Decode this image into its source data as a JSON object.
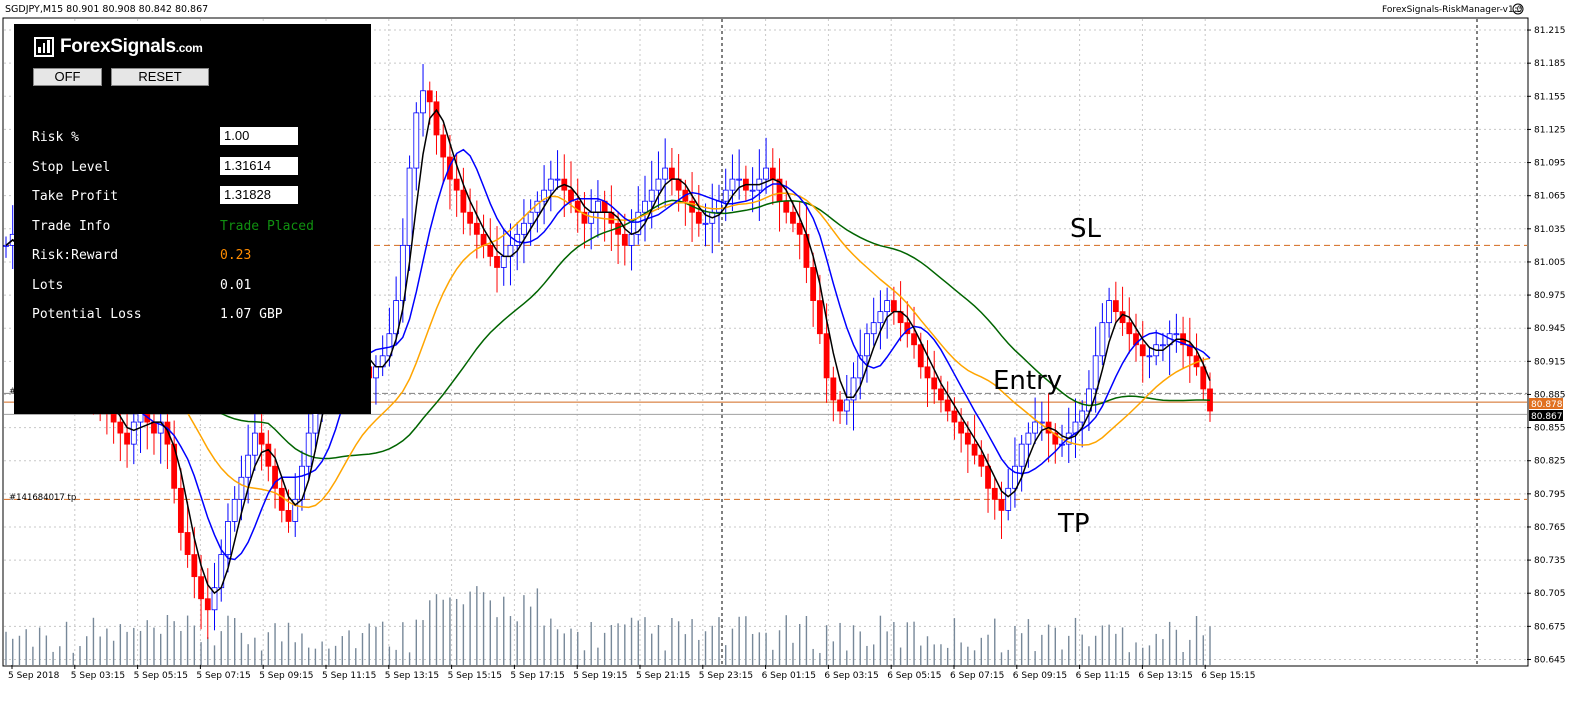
{
  "chart_header": {
    "symbol_info": "SGDJPY,M15  80.901 80.908 80.842 80.867",
    "indicator_name": "ForexSignals-RiskManager-v1.0",
    "smiley_icon": "smiley-icon"
  },
  "panel": {
    "logo_text": "ForexSignals",
    "logo_suffix": ".com",
    "off_button": "OFF",
    "reset_button": "RESET",
    "rows": [
      {
        "label": "Risk %",
        "value": "1.00"
      },
      {
        "label": "Stop Level",
        "value": "1.31614"
      },
      {
        "label": "Take Profit",
        "value": "1.31828"
      },
      {
        "label": "Trade Info",
        "value": "Trade Placed"
      },
      {
        "label": "Risk:Reward",
        "value": "0.23"
      },
      {
        "label": "Lots",
        "value": "0.01"
      },
      {
        "label": "Potential Loss",
        "value": "1.07 GBP"
      }
    ],
    "colors": {
      "trade_info": "#109010",
      "risk_reward": "#ff8c00",
      "default": "#ffffff"
    }
  },
  "annotations": {
    "sl": "SL",
    "entry": "Entry",
    "tp": "TP",
    "order_tag": "#141684017 tp"
  },
  "price_tags": {
    "orange_tag": "80.878",
    "current_tag": "80.867"
  },
  "colors": {
    "bull_body": "#ffffff",
    "bear_body": "#ff0000",
    "candle_outline": "#0000ff",
    "ma_fast": "#000000",
    "ma_blue": "#0000ff",
    "ma_orange": "#ffa500",
    "ma_green": "#006400",
    "sl_tp_line": "#d2691e",
    "entry_line": "#d2691e",
    "volume": "#778899",
    "grid": "#c8c8c8"
  },
  "chart_data": {
    "type": "candlestick",
    "symbol": "SGDJPY",
    "timeframe": "M15",
    "ylim": [
      80.64,
      81.225
    ],
    "yticks": [
      "81.215",
      "81.185",
      "81.155",
      "81.125",
      "81.095",
      "81.065",
      "81.035",
      "81.005",
      "80.975",
      "80.945",
      "80.915",
      "80.885",
      "80.855",
      "80.825",
      "80.795",
      "80.765",
      "80.735",
      "80.705",
      "80.675",
      "80.645"
    ],
    "xticks": [
      "5 Sep 2018",
      "5 Sep 03:15",
      "5 Sep 05:15",
      "5 Sep 07:15",
      "5 Sep 09:15",
      "5 Sep 11:15",
      "5 Sep 13:15",
      "5 Sep 15:15",
      "5 Sep 17:15",
      "5 Sep 19:15",
      "5 Sep 21:15",
      "5 Sep 23:15",
      "6 Sep 01:15",
      "6 Sep 03:15",
      "6 Sep 05:15",
      "6 Sep 07:15",
      "6 Sep 09:15",
      "6 Sep 11:15",
      "6 Sep 13:15",
      "6 Sep 15:15"
    ],
    "stop_loss_level": 81.02,
    "entry_level": 80.878,
    "take_profit_level": 80.79,
    "current_price": 80.867,
    "candles_close_approx": [
      81.02,
      81.03,
      81.01,
      80.99,
      80.97,
      80.96,
      80.95,
      80.94,
      80.93,
      80.92,
      80.92,
      80.91,
      80.9,
      80.89,
      80.88,
      80.87,
      80.86,
      80.85,
      80.84,
      80.86,
      80.87,
      80.86,
      80.85,
      80.86,
      80.84,
      80.8,
      80.76,
      80.74,
      80.72,
      80.7,
      80.69,
      80.71,
      80.74,
      80.77,
      80.79,
      80.81,
      80.83,
      80.85,
      80.84,
      80.82,
      80.8,
      80.78,
      80.77,
      80.79,
      80.82,
      80.85,
      80.88,
      80.91,
      80.93,
      80.95,
      80.96,
      80.94,
      80.92,
      80.91,
      80.9,
      80.91,
      80.92,
      80.94,
      80.97,
      81.02,
      81.09,
      81.14,
      81.16,
      81.15,
      81.12,
      81.1,
      81.08,
      81.07,
      81.05,
      81.04,
      81.03,
      81.02,
      81.01,
      81.0,
      81.01,
      81.02,
      81.03,
      81.04,
      81.05,
      81.06,
      81.07,
      81.08,
      81.08,
      81.07,
      81.06,
      81.05,
      81.04,
      81.05,
      81.06,
      81.05,
      81.04,
      81.03,
      81.02,
      81.03,
      81.05,
      81.06,
      81.07,
      81.08,
      81.09,
      81.08,
      81.07,
      81.06,
      81.05,
      81.04,
      81.04,
      81.05,
      81.06,
      81.07,
      81.08,
      81.08,
      81.07,
      81.07,
      81.08,
      81.09,
      81.08,
      81.06,
      81.05,
      81.04,
      81.03,
      81.0,
      80.97,
      80.94,
      80.9,
      80.88,
      80.87,
      80.88,
      80.9,
      80.92,
      80.94,
      80.95,
      80.96,
      80.97,
      80.96,
      80.95,
      80.94,
      80.93,
      80.91,
      80.9,
      80.89,
      80.88,
      80.87,
      80.86,
      80.85,
      80.84,
      80.83,
      80.82,
      80.8,
      80.79,
      80.78,
      80.8,
      80.82,
      80.84,
      80.85,
      80.86,
      80.86,
      80.85,
      80.84,
      80.84,
      80.85,
      80.86,
      80.87,
      80.89,
      80.92,
      80.95,
      80.97,
      80.96,
      80.95,
      80.94,
      80.93,
      80.92,
      80.92,
      80.93,
      80.93,
      80.94,
      80.94,
      80.93,
      80.92,
      80.91,
      80.89,
      80.87
    ]
  }
}
